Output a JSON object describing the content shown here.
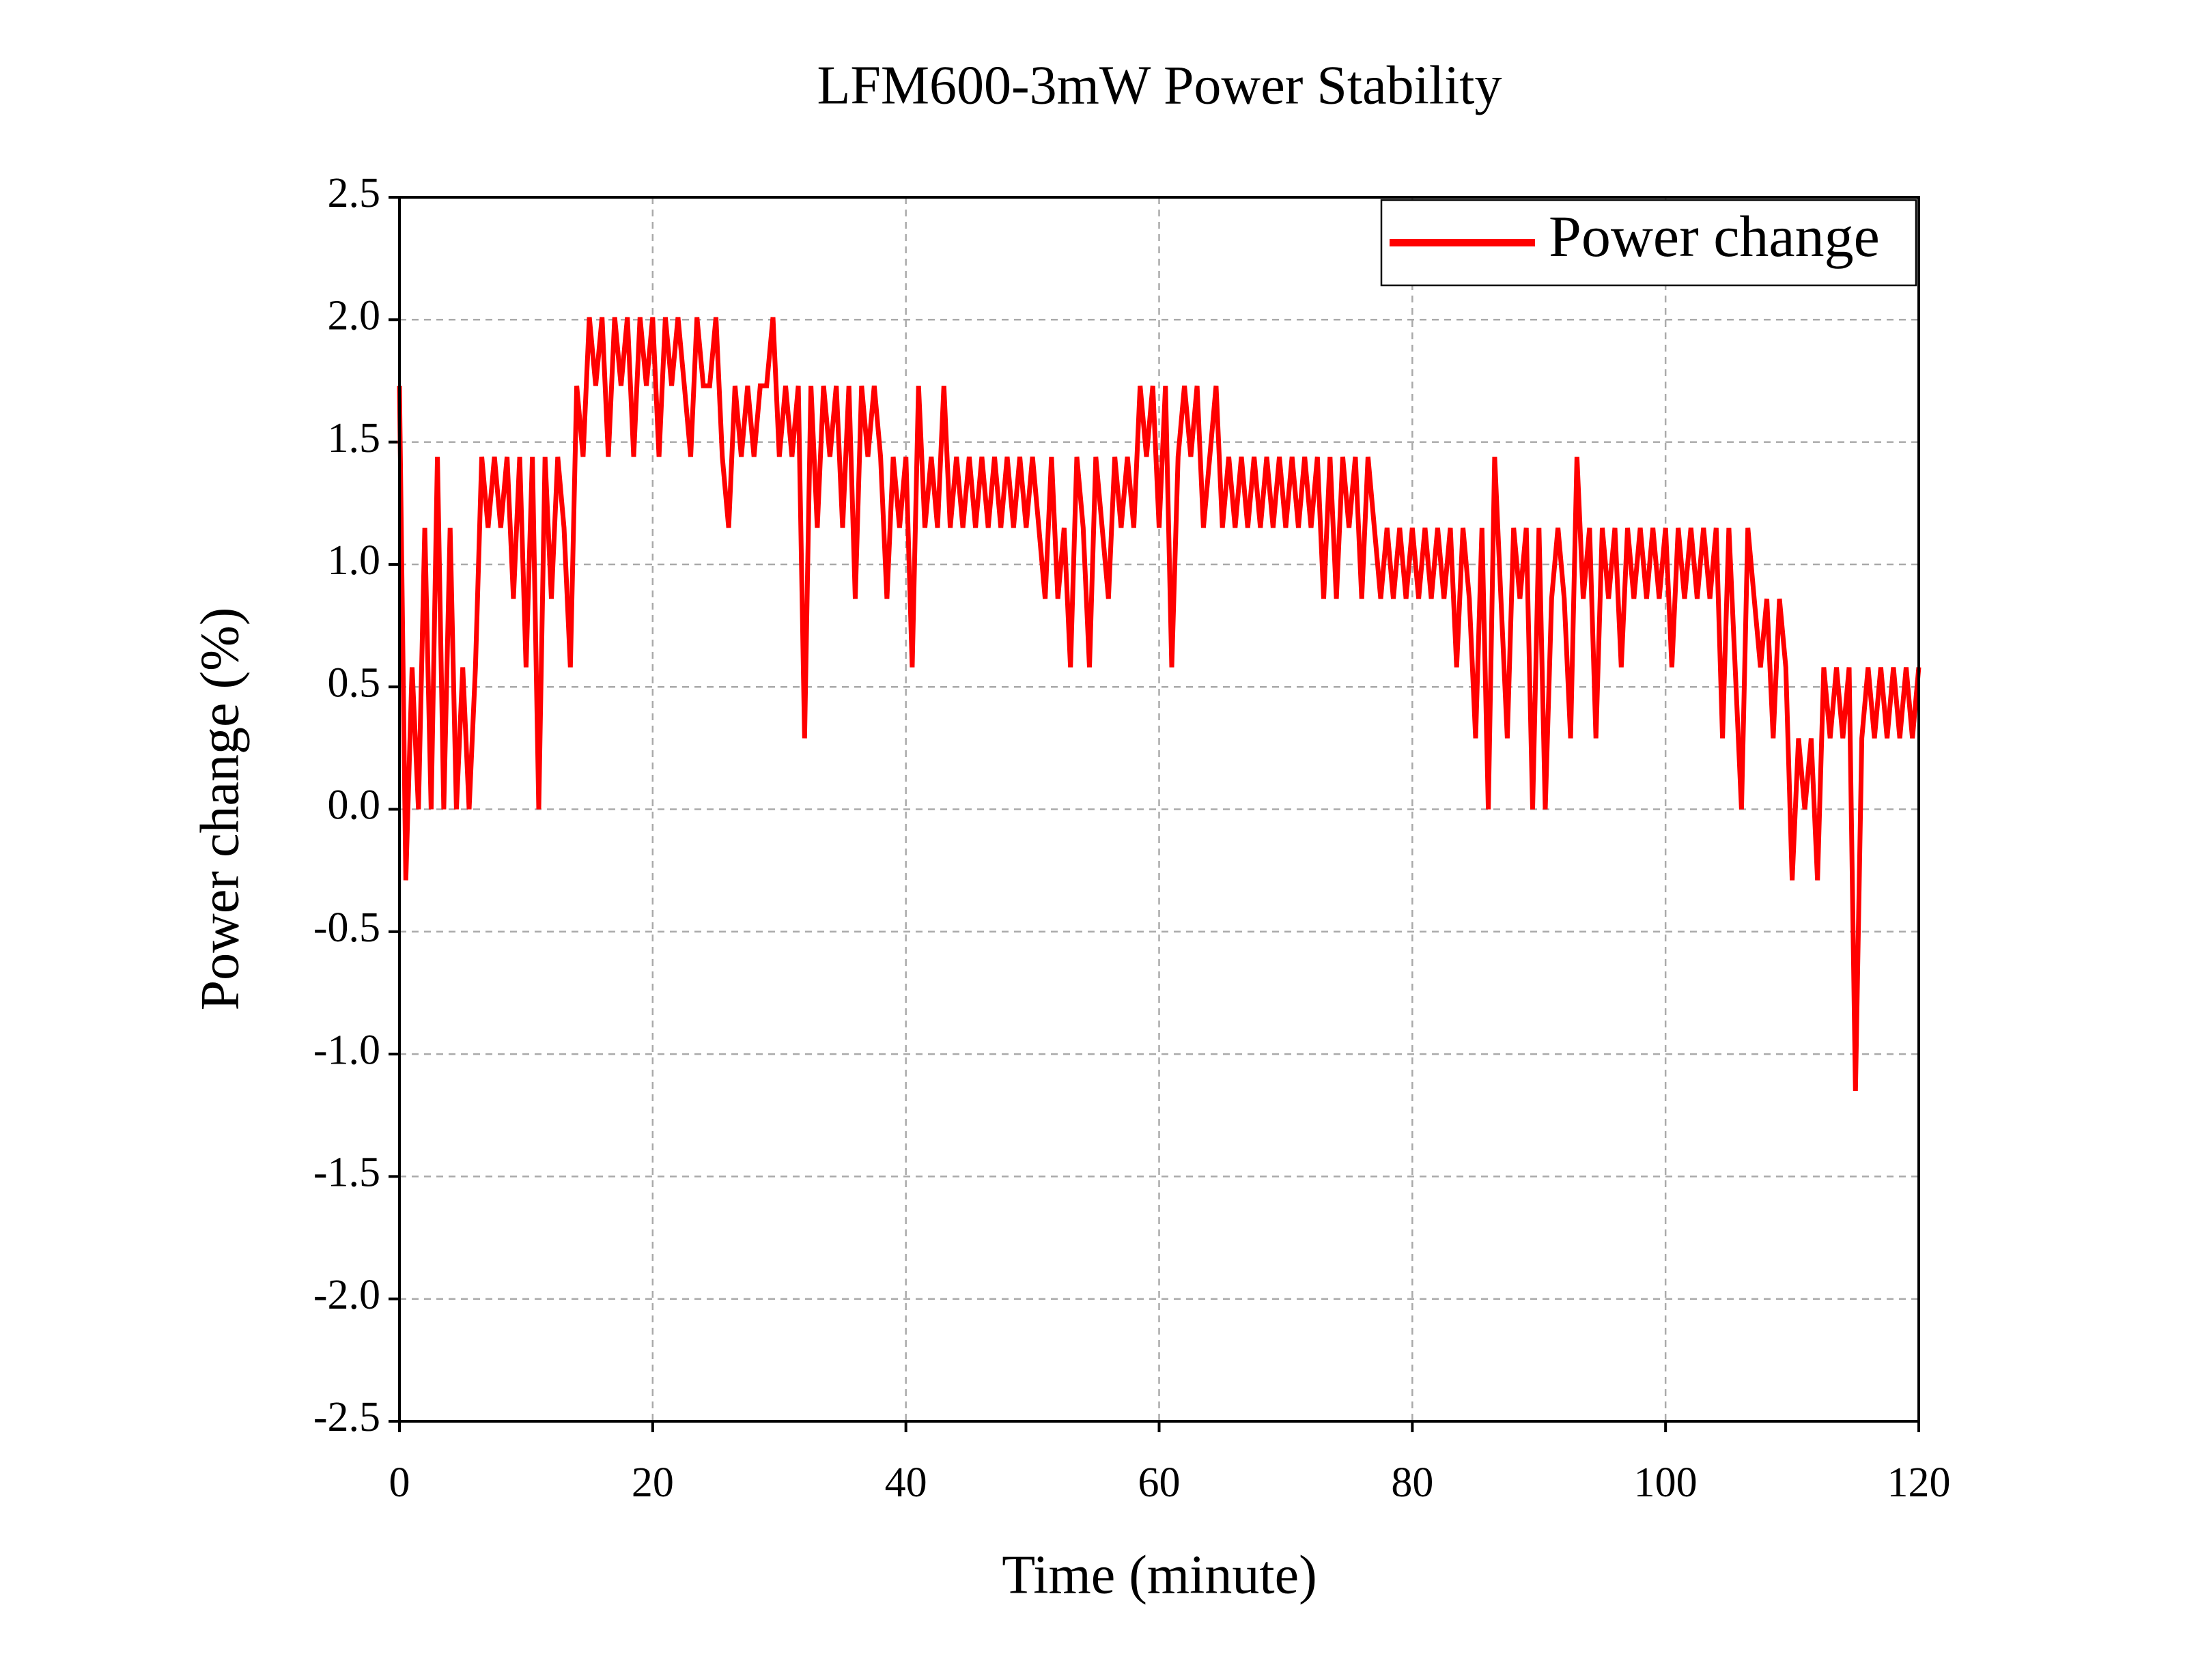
{
  "chart_data": {
    "type": "line",
    "title": "LFM600-3mW Power Stability",
    "x_label": "Time (minute)",
    "y_label": "Power change (%)",
    "xlim": [
      0,
      120
    ],
    "xticks": [
      0,
      20,
      40,
      60,
      80,
      100,
      120
    ],
    "ylim": [
      -2.5,
      2.5
    ],
    "yticks": [
      -2.5,
      {
        "value": -2,
        "label": "-2.0"
      },
      -1.5,
      {
        "value": -1,
        "label": "-1.0"
      },
      -0.5,
      {
        "value": 0,
        "label": "0.0"
      },
      0.5,
      {
        "value": 1,
        "label": "1.0"
      },
      1.5,
      {
        "value": 2,
        "label": "2.0"
      },
      2.5
    ],
    "grid": true,
    "legend": "upper right",
    "x": [
      0,
      0.5,
      1,
      1.5,
      2,
      2.5,
      3,
      3.5,
      4,
      4.5,
      5,
      5.5,
      6,
      6.5,
      7,
      7.5,
      8,
      8.5,
      9,
      9.5,
      10,
      10.5,
      11,
      11.5,
      12,
      12.5,
      13,
      13.5,
      14,
      14.5,
      15,
      15.5,
      16,
      16.5,
      17,
      17.5,
      18,
      18.5,
      19,
      19.5,
      20,
      20.5,
      21,
      21.5,
      22,
      22.5,
      23,
      23.5,
      24,
      24.5,
      25,
      25.5,
      26,
      26.5,
      27,
      27.5,
      28,
      28.5,
      29,
      29.5,
      30,
      30.5,
      31,
      31.5,
      32,
      32.5,
      33,
      33.5,
      34,
      34.5,
      35,
      35.5,
      36,
      36.5,
      37,
      37.5,
      38,
      38.5,
      39,
      39.5,
      40,
      40.5,
      41,
      41.5,
      42,
      42.5,
      43,
      43.5,
      44,
      44.5,
      45,
      45.5,
      46,
      46.5,
      47,
      47.5,
      48,
      48.5,
      49,
      49.5,
      50,
      50.5,
      51,
      51.5,
      52,
      52.5,
      53,
      53.5,
      54,
      54.5,
      55,
      55.5,
      56,
      56.5,
      57,
      57.5,
      58,
      58.5,
      59,
      59.5,
      60,
      60.5,
      61,
      61.5,
      62,
      62.5,
      63,
      63.5,
      64,
      64.5,
      65,
      65.5,
      66,
      66.5,
      67,
      67.5,
      68,
      68.5,
      69,
      69.5,
      70,
      70.5,
      71,
      71.5,
      72,
      72.5,
      73,
      73.5,
      74,
      74.5,
      75,
      75.5,
      76,
      76.5,
      77,
      77.5,
      78,
      78.5,
      79,
      79.5,
      80,
      80.5,
      81,
      81.5,
      82,
      82.5,
      83,
      83.5,
      84,
      84.5,
      85,
      85.5,
      86,
      86.5,
      87,
      87.5,
      88,
      88.5,
      89,
      89.5,
      90,
      90.5,
      91,
      91.5,
      92,
      92.5,
      93,
      93.5,
      94,
      94.5,
      95,
      95.5,
      96,
      96.5,
      97,
      97.5,
      98,
      98.5,
      99,
      99.5,
      100,
      100.5,
      101,
      101.5,
      102,
      102.5,
      103,
      103.5,
      104,
      104.5,
      105,
      105.5,
      106,
      106.5,
      107,
      107.5,
      108,
      108.5,
      109,
      109.5,
      110,
      110.5,
      111,
      111.5,
      112,
      112.5,
      113,
      113.5,
      114,
      114.5,
      115,
      115.5,
      116,
      116.5,
      117,
      117.5,
      118,
      118.5,
      119,
      119.5,
      120
    ],
    "series": [
      {
        "name": "Power change",
        "color": "#ff0000",
        "values": [
          1.73,
          -0.29,
          0.58,
          0,
          1.15,
          0,
          1.44,
          0,
          1.15,
          0,
          0.58,
          0,
          0.58,
          1.44,
          1.15,
          1.44,
          1.15,
          1.44,
          0.86,
          1.44,
          0.58,
          1.44,
          0,
          1.44,
          0.86,
          1.44,
          1.15,
          0.58,
          1.73,
          1.44,
          2.01,
          1.73,
          2.01,
          1.44,
          2.01,
          1.73,
          2.01,
          1.44,
          2.01,
          1.73,
          2.01,
          1.44,
          2.01,
          1.73,
          2.01,
          1.73,
          1.44,
          2.01,
          1.73,
          1.73,
          2.01,
          1.44,
          1.15,
          1.73,
          1.44,
          1.73,
          1.44,
          1.73,
          1.73,
          2.01,
          1.44,
          1.73,
          1.44,
          1.73,
          0.29,
          1.73,
          1.15,
          1.73,
          1.44,
          1.73,
          1.15,
          1.73,
          0.86,
          1.73,
          1.44,
          1.73,
          1.44,
          0.86,
          1.44,
          1.15,
          1.44,
          0.58,
          1.73,
          1.15,
          1.44,
          1.15,
          1.73,
          1.15,
          1.44,
          1.15,
          1.44,
          1.15,
          1.44,
          1.15,
          1.44,
          1.15,
          1.44,
          1.15,
          1.44,
          1.15,
          1.44,
          1.15,
          0.86,
          1.44,
          0.86,
          1.15,
          0.58,
          1.44,
          1.15,
          0.58,
          1.44,
          1.15,
          0.86,
          1.44,
          1.15,
          1.44,
          1.15,
          1.73,
          1.44,
          1.73,
          1.15,
          1.73,
          0.58,
          1.44,
          1.73,
          1.44,
          1.73,
          1.15,
          1.44,
          1.73,
          1.15,
          1.44,
          1.15,
          1.44,
          1.15,
          1.44,
          1.15,
          1.44,
          1.15,
          1.44,
          1.15,
          1.44,
          1.15,
          1.44,
          1.15,
          1.44,
          0.86,
          1.44,
          0.86,
          1.44,
          1.15,
          1.44,
          0.86,
          1.44,
          1.15,
          0.86,
          1.15,
          0.86,
          1.15,
          0.86,
          1.15,
          0.86,
          1.15,
          0.86,
          1.15,
          0.86,
          1.15,
          0.58,
          1.15,
          0.86,
          0.29,
          1.15,
          0,
          1.44,
          0.86,
          0.29,
          1.15,
          0.86,
          1.15,
          0,
          1.15,
          0,
          0.86,
          1.15,
          0.86,
          0.29,
          1.44,
          0.86,
          1.15,
          0.29,
          1.15,
          0.86,
          1.15,
          0.58,
          1.15,
          0.86,
          1.15,
          0.86,
          1.15,
          0.86,
          1.15,
          0.58,
          1.15,
          0.86,
          1.15,
          0.86,
          1.15,
          0.86,
          1.15,
          0.29,
          1.15,
          0.58,
          0,
          1.15,
          0.86,
          0.58,
          0.86,
          0.29,
          0.86,
          0.58,
          -0.29,
          0.29,
          0,
          0.29,
          -0.29,
          0.58,
          0.29,
          0.58,
          0.29,
          0.58,
          -1.15,
          0.29,
          0.58,
          0.29,
          0.58,
          0.29,
          0.58,
          0.29,
          0.58,
          0.29,
          0.58
        ]
      }
    ]
  }
}
